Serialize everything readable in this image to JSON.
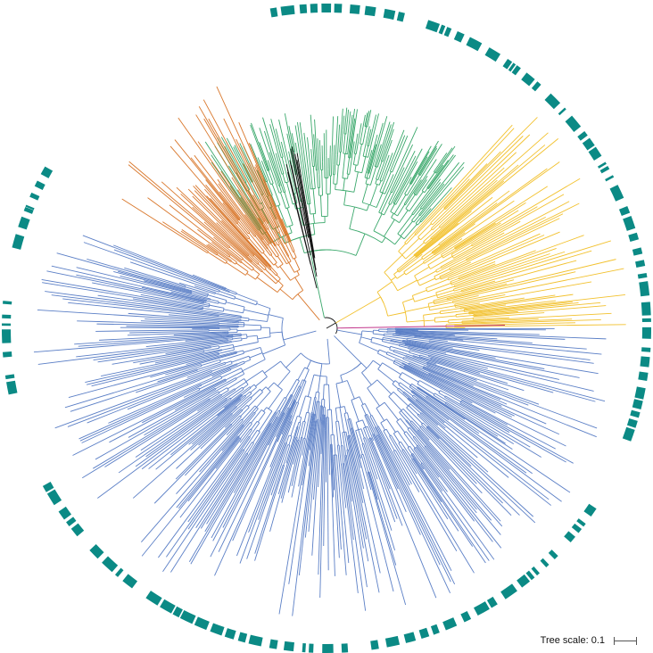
{
  "tree": {
    "clades": [
      {
        "name": "green",
        "color": "#3aa86b"
      },
      {
        "name": "yellow",
        "color": "#f2c12e"
      },
      {
        "name": "orange",
        "color": "#d9772b"
      },
      {
        "name": "blue",
        "color": "#5b7fc6"
      },
      {
        "name": "magenta",
        "color": "#c2368b"
      },
      {
        "name": "root",
        "color": "#111111"
      }
    ],
    "ring_color": "#0b8a85"
  },
  "scale": {
    "label": "Tree scale: 0.1"
  }
}
